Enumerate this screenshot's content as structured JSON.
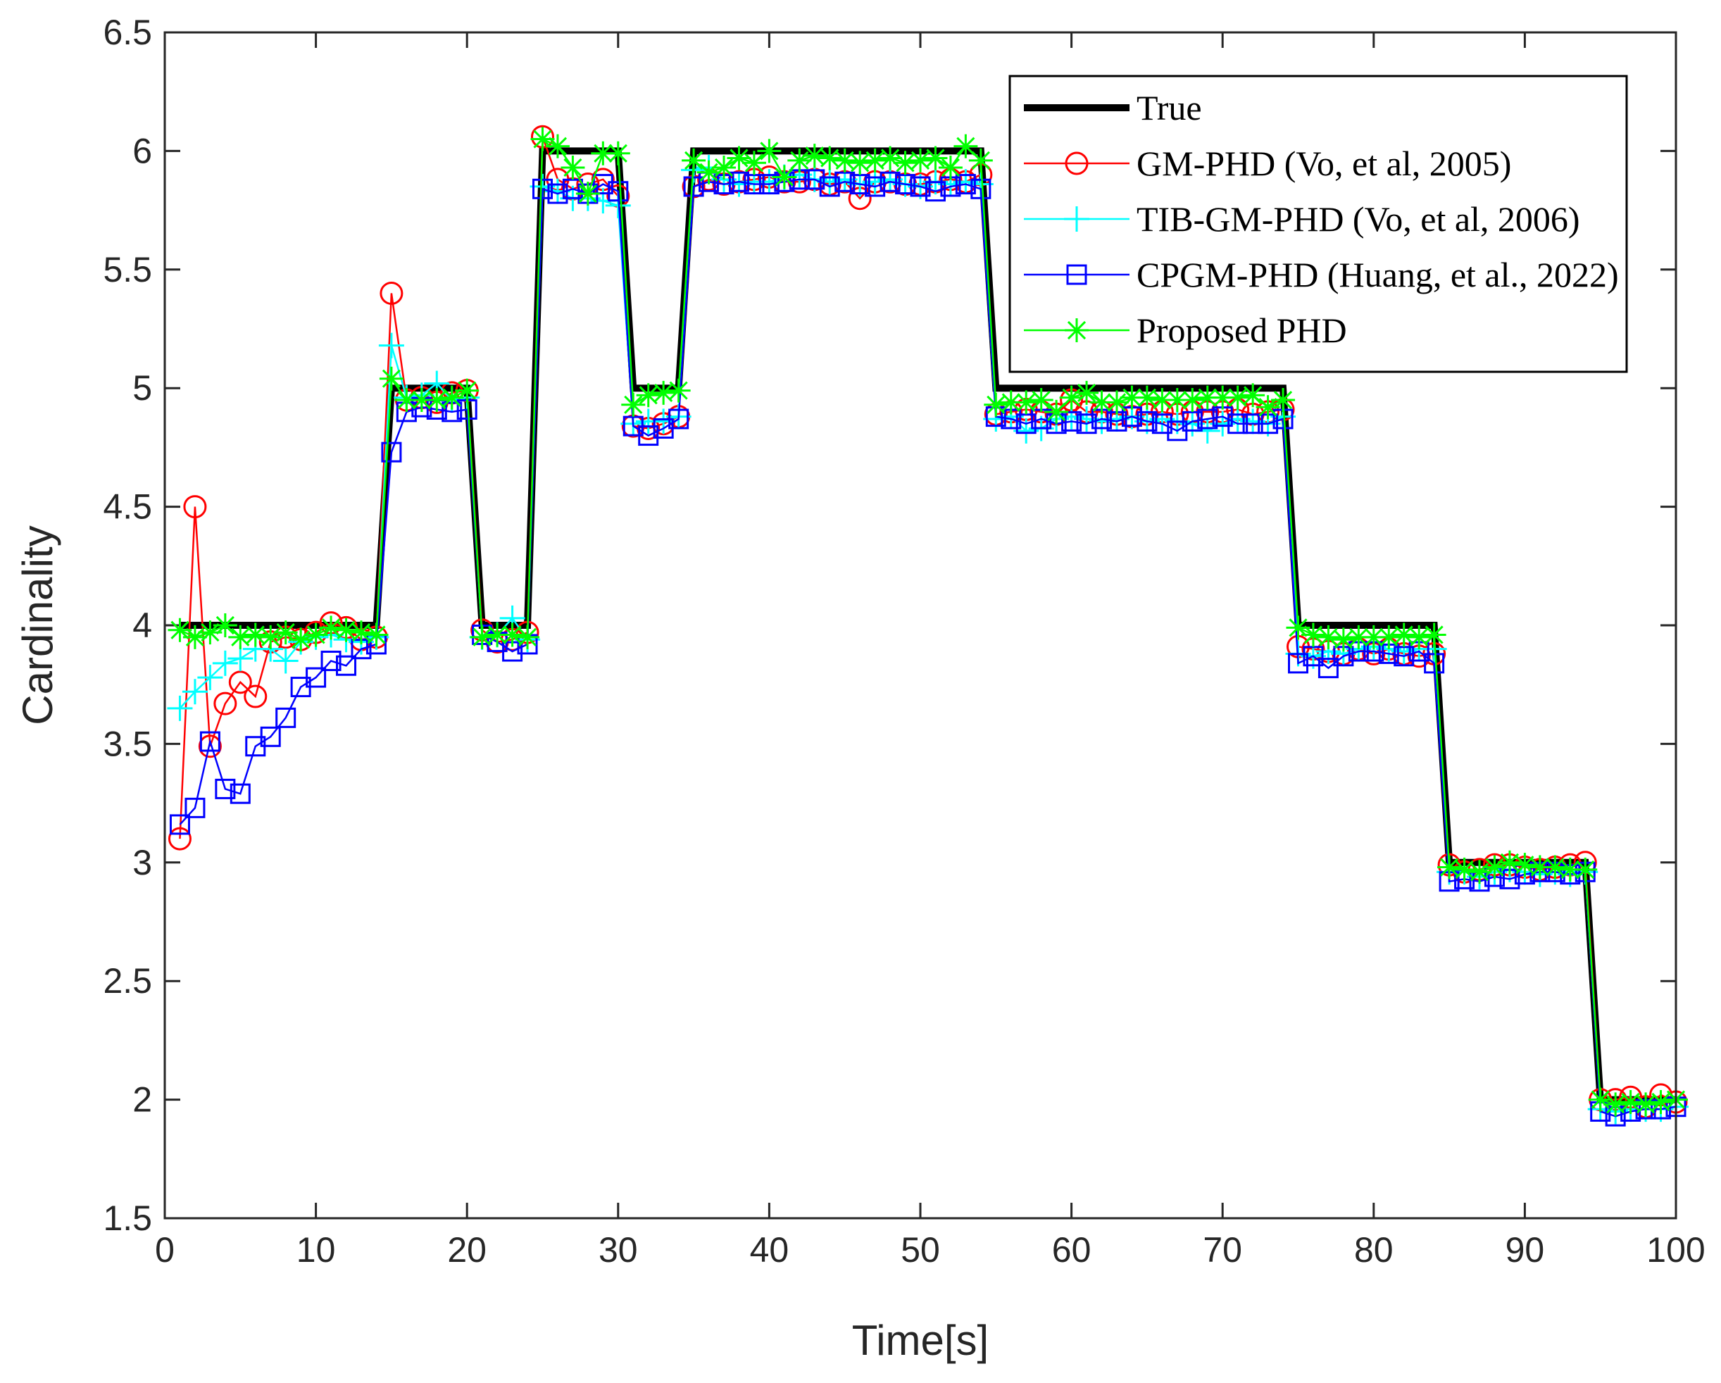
{
  "chart_data": {
    "type": "line",
    "xlabel": "Time[s]",
    "ylabel": "Cardinality",
    "xlim": [
      0,
      100
    ],
    "ylim": [
      1.5,
      6.5
    ],
    "xticks": [
      "0",
      "10",
      "20",
      "30",
      "40",
      "50",
      "60",
      "70",
      "80",
      "90",
      "100"
    ],
    "yticks": [
      "1.5",
      "2",
      "2.5",
      "3",
      "3.5",
      "4",
      "4.5",
      "5",
      "5.5",
      "6",
      "6.5"
    ],
    "legend_position": "top-right",
    "x": [
      1,
      2,
      3,
      4,
      5,
      6,
      7,
      8,
      9,
      10,
      11,
      12,
      13,
      14,
      15,
      16,
      17,
      18,
      19,
      20,
      21,
      22,
      23,
      24,
      25,
      26,
      27,
      28,
      29,
      30,
      31,
      32,
      33,
      34,
      35,
      36,
      37,
      38,
      39,
      40,
      41,
      42,
      43,
      44,
      45,
      46,
      47,
      48,
      49,
      50,
      51,
      52,
      53,
      54,
      55,
      56,
      57,
      58,
      59,
      60,
      61,
      62,
      63,
      64,
      65,
      66,
      67,
      68,
      69,
      70,
      71,
      72,
      73,
      74,
      75,
      76,
      77,
      78,
      79,
      80,
      81,
      82,
      83,
      84,
      85,
      86,
      87,
      88,
      89,
      90,
      91,
      92,
      93,
      94,
      95,
      96,
      97,
      98,
      99,
      100
    ],
    "series": [
      {
        "name": "True",
        "color": "#000000",
        "marker": "none",
        "values": [
          4,
          4,
          4,
          4,
          4,
          4,
          4,
          4,
          4,
          4,
          4,
          4,
          4,
          4,
          5,
          5,
          5,
          5,
          5,
          5,
          4,
          4,
          4,
          4,
          6,
          6,
          6,
          6,
          6,
          6,
          5,
          5,
          5,
          5,
          6,
          6,
          6,
          6,
          6,
          6,
          6,
          6,
          6,
          6,
          6,
          6,
          6,
          6,
          6,
          6,
          6,
          6,
          6,
          6,
          5,
          5,
          5,
          5,
          5,
          5,
          5,
          5,
          5,
          5,
          5,
          5,
          5,
          5,
          5,
          5,
          5,
          5,
          5,
          5,
          4,
          4,
          4,
          4,
          4,
          4,
          4,
          4,
          4,
          4,
          3,
          3,
          3,
          3,
          3,
          3,
          3,
          3,
          3,
          3,
          2,
          2,
          2,
          2,
          2,
          2
        ]
      },
      {
        "name": "GM-PHD (Vo, et al, 2005)",
        "color": "#ff0000",
        "marker": "circle",
        "values": [
          3.1,
          4.5,
          3.49,
          3.67,
          3.76,
          3.7,
          3.93,
          3.95,
          3.94,
          3.97,
          4.01,
          3.99,
          3.94,
          3.95,
          5.4,
          4.95,
          4.96,
          4.94,
          4.98,
          4.99,
          3.98,
          3.93,
          3.94,
          3.97,
          6.06,
          5.88,
          5.84,
          5.86,
          5.88,
          5.81,
          4.84,
          4.83,
          4.85,
          4.88,
          5.85,
          5.88,
          5.86,
          5.87,
          5.88,
          5.89,
          5.87,
          5.87,
          5.88,
          5.86,
          5.87,
          5.8,
          5.87,
          5.87,
          5.86,
          5.86,
          5.87,
          5.88,
          5.87,
          5.9,
          4.89,
          4.9,
          4.91,
          4.9,
          4.89,
          4.95,
          4.9,
          4.9,
          4.89,
          4.88,
          4.89,
          4.9,
          4.89,
          4.9,
          4.9,
          4.9,
          4.91,
          4.89,
          4.9,
          4.91,
          3.91,
          3.9,
          3.89,
          3.88,
          3.9,
          3.88,
          3.9,
          3.88,
          3.87,
          3.88,
          2.99,
          2.96,
          2.97,
          2.99,
          2.99,
          2.98,
          2.97,
          2.98,
          2.99,
          3.0,
          2.0,
          2.0,
          2.01,
          1.97,
          2.02,
          1.99
        ]
      },
      {
        "name": "TIB-GM-PHD (Vo, et al, 2006)",
        "color": "#00ffff",
        "marker": "plus",
        "values": [
          3.65,
          3.72,
          3.78,
          3.84,
          3.86,
          3.9,
          3.9,
          3.85,
          3.93,
          3.95,
          3.96,
          3.94,
          3.93,
          3.95,
          5.18,
          4.96,
          4.97,
          5.02,
          4.95,
          4.96,
          3.95,
          3.96,
          4.03,
          3.94,
          5.85,
          5.83,
          5.8,
          5.8,
          5.79,
          5.77,
          4.85,
          4.86,
          4.86,
          4.88,
          5.92,
          5.93,
          5.88,
          5.86,
          5.87,
          5.87,
          5.89,
          5.9,
          5.88,
          5.87,
          5.88,
          5.86,
          5.87,
          5.88,
          5.86,
          5.85,
          5.87,
          5.86,
          5.87,
          5.86,
          4.87,
          4.88,
          4.82,
          4.83,
          4.87,
          4.88,
          4.87,
          4.86,
          4.87,
          4.88,
          4.86,
          4.87,
          4.86,
          4.85,
          4.82,
          4.85,
          4.87,
          4.86,
          4.85,
          4.88,
          3.88,
          3.87,
          3.89,
          3.88,
          3.9,
          3.91,
          3.9,
          3.89,
          3.9,
          3.9,
          2.96,
          2.96,
          2.94,
          2.96,
          2.97,
          2.96,
          2.95,
          2.96,
          2.95,
          2.96,
          1.96,
          1.95,
          1.96,
          1.96,
          1.96,
          1.97
        ]
      },
      {
        "name": "CPGM-PHD (Huang, et al., 2022)",
        "color": "#0000ff",
        "marker": "square",
        "values": [
          3.16,
          3.23,
          3.51,
          3.31,
          3.29,
          3.49,
          3.53,
          3.61,
          3.74,
          3.78,
          3.85,
          3.83,
          3.9,
          3.92,
          4.73,
          4.9,
          4.92,
          4.91,
          4.9,
          4.91,
          3.96,
          3.93,
          3.89,
          3.92,
          5.84,
          5.82,
          5.84,
          5.82,
          5.86,
          5.83,
          4.84,
          4.8,
          4.83,
          4.87,
          5.85,
          5.87,
          5.86,
          5.87,
          5.86,
          5.86,
          5.87,
          5.88,
          5.88,
          5.85,
          5.87,
          5.86,
          5.85,
          5.87,
          5.86,
          5.85,
          5.83,
          5.85,
          5.86,
          5.84,
          4.88,
          4.87,
          4.85,
          4.87,
          4.85,
          4.86,
          4.85,
          4.87,
          4.86,
          4.88,
          4.86,
          4.85,
          4.82,
          4.86,
          4.87,
          4.88,
          4.85,
          4.85,
          4.85,
          4.87,
          3.84,
          3.87,
          3.82,
          3.87,
          3.89,
          3.89,
          3.88,
          3.87,
          3.89,
          3.84,
          2.92,
          2.93,
          2.92,
          2.94,
          2.93,
          2.95,
          2.96,
          2.96,
          2.95,
          2.96,
          1.95,
          1.93,
          1.95,
          1.96,
          1.96,
          1.97
        ]
      },
      {
        "name": "Proposed PHD",
        "color": "#00ff00",
        "marker": "star",
        "values": [
          3.98,
          3.95,
          3.97,
          4.0,
          3.95,
          3.96,
          3.95,
          3.97,
          3.94,
          3.96,
          3.99,
          3.98,
          3.97,
          3.96,
          5.04,
          4.95,
          4.95,
          4.95,
          4.96,
          4.99,
          3.95,
          3.96,
          3.96,
          3.95,
          6.05,
          6.02,
          5.93,
          5.82,
          5.99,
          5.99,
          4.93,
          4.97,
          4.98,
          4.99,
          5.96,
          5.91,
          5.93,
          5.97,
          5.95,
          6.0,
          5.89,
          5.96,
          5.98,
          5.97,
          5.96,
          5.95,
          5.96,
          5.97,
          5.95,
          5.96,
          5.97,
          5.93,
          6.02,
          5.96,
          4.93,
          4.94,
          4.94,
          4.95,
          4.9,
          4.96,
          4.98,
          4.94,
          4.94,
          4.96,
          4.96,
          4.95,
          4.95,
          4.95,
          4.96,
          4.96,
          4.96,
          4.97,
          4.92,
          4.95,
          3.99,
          3.96,
          3.95,
          3.94,
          3.95,
          3.95,
          3.95,
          3.96,
          3.95,
          3.96,
          2.98,
          2.97,
          2.96,
          2.98,
          3.0,
          2.99,
          2.98,
          2.98,
          2.97,
          2.97,
          2.0,
          1.98,
          1.99,
          1.98,
          1.99,
          2.0
        ]
      }
    ]
  }
}
